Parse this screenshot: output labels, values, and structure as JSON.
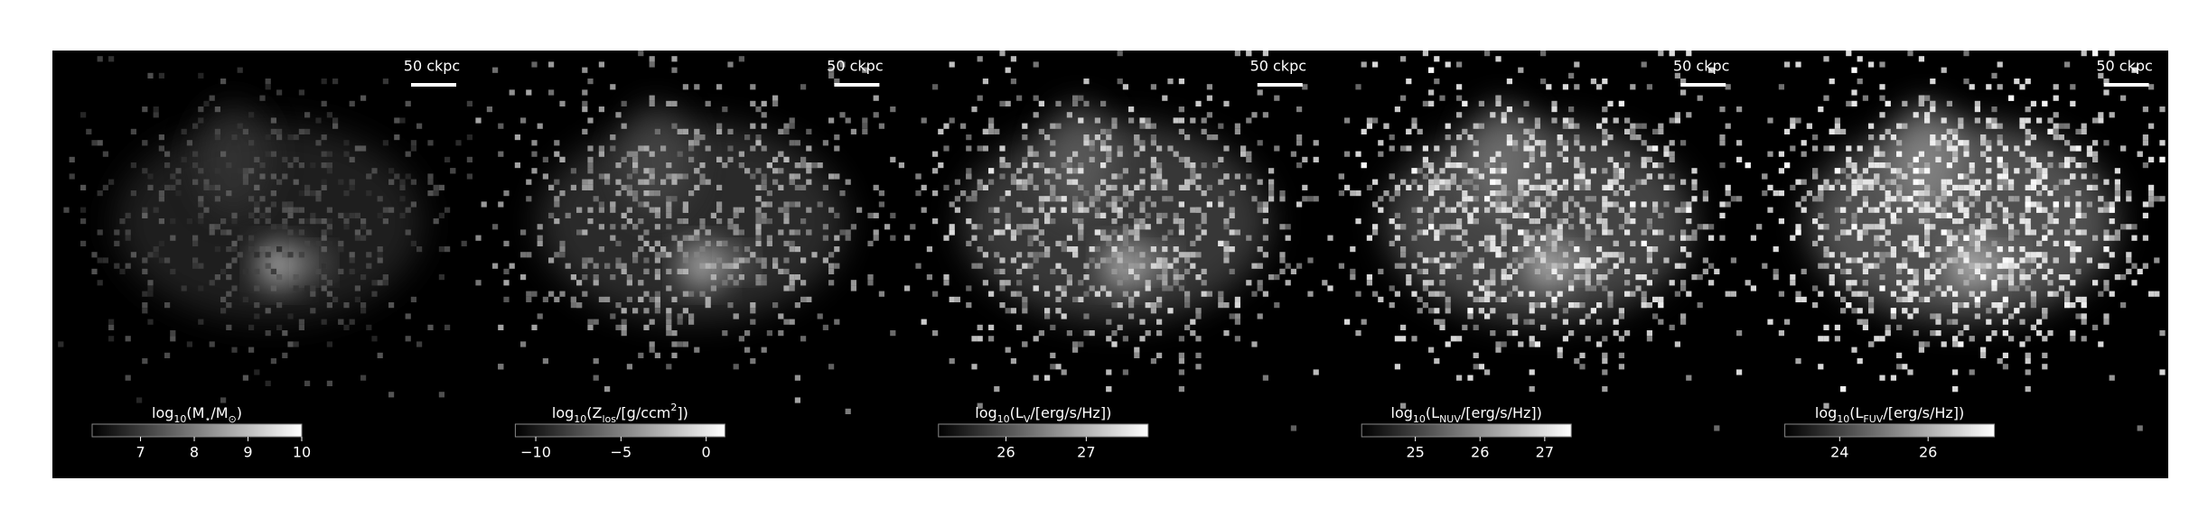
{
  "chart_data": [
    {
      "type": "image",
      "colormap": "gray",
      "scale_bar": "50 ckpc",
      "colorbar": {
        "label": [
          {
            "text": "log"
          },
          {
            "text": "10",
            "sub": true
          },
          {
            "text": "(M"
          },
          {
            "text": "⋆",
            "sub": true
          },
          {
            "text": "/M"
          },
          {
            "text": "⊙",
            "sub": true
          },
          {
            "text": ")"
          }
        ],
        "lim": [
          6.1,
          10
        ],
        "ticks": [
          7,
          8,
          9,
          10
        ]
      }
    },
    {
      "type": "image",
      "colormap": "gray",
      "scale_bar": "50 ckpc",
      "colorbar": {
        "label": [
          {
            "text": "log"
          },
          {
            "text": "10",
            "sub": true
          },
          {
            "text": "(Z"
          },
          {
            "text": "los",
            "sub": true
          },
          {
            "text": "/[g/ccm"
          },
          {
            "text": "2",
            "sup": true
          },
          {
            "text": "])"
          }
        ],
        "lim": [
          -11.2,
          1.1
        ],
        "ticks": [
          {
            "value": -10,
            "label": "−10"
          },
          {
            "value": -5,
            "label": "−5"
          },
          0
        ]
      }
    },
    {
      "type": "image",
      "colormap": "gray",
      "scale_bar": "50 ckpc",
      "colorbar": {
        "label": [
          {
            "text": "log"
          },
          {
            "text": "10",
            "sub": true
          },
          {
            "text": "(L"
          },
          {
            "text": "V",
            "sub": true
          },
          {
            "text": "/[erg/s/Hz])"
          }
        ],
        "lim": [
          25.16,
          27.77
        ],
        "ticks": [
          26,
          27
        ]
      }
    },
    {
      "type": "image",
      "colormap": "gray",
      "scale_bar": "50 ckpc",
      "colorbar": {
        "label": [
          {
            "text": "log"
          },
          {
            "text": "10",
            "sub": true
          },
          {
            "text": "(L"
          },
          {
            "text": "NUV",
            "sub": true
          },
          {
            "text": "/[erg/s/Hz])"
          }
        ],
        "lim": [
          24.17,
          27.41
        ],
        "ticks": [
          25,
          26,
          27
        ]
      }
    },
    {
      "type": "image",
      "colormap": "gray",
      "scale_bar": "50 ckpc",
      "colorbar": {
        "label": [
          {
            "text": "log"
          },
          {
            "text": "10",
            "sub": true
          },
          {
            "text": "(L"
          },
          {
            "text": "FUV",
            "sub": true
          },
          {
            "text": "/[erg/s/Hz])"
          }
        ],
        "lim": [
          22.76,
          27.5
        ],
        "ticks": [
          24,
          26
        ]
      }
    }
  ]
}
